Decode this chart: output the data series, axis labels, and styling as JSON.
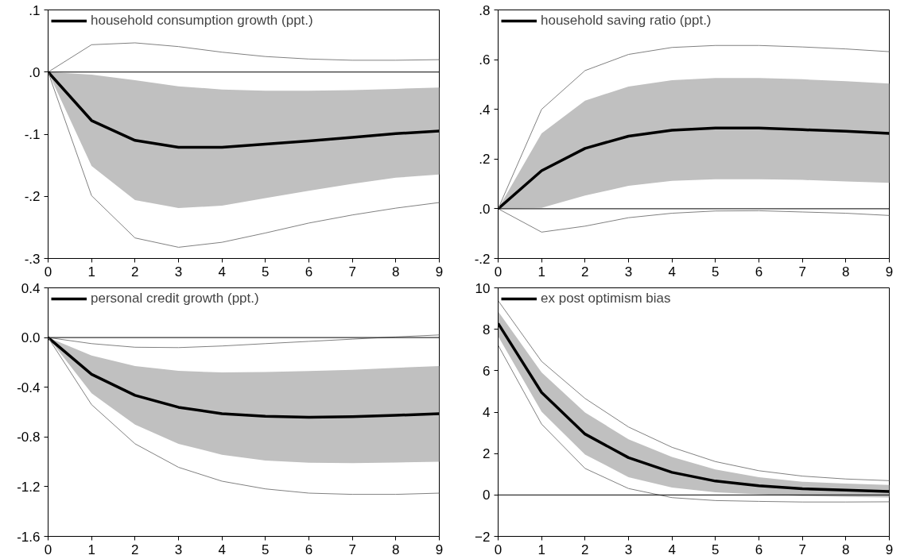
{
  "chart_data": [
    {
      "type": "line",
      "x": [
        0,
        1,
        2,
        3,
        4,
        5,
        6,
        7,
        8,
        9
      ],
      "xlim": [
        0,
        9
      ],
      "xticks": [
        0,
        1,
        2,
        3,
        4,
        5,
        6,
        7,
        8,
        9
      ],
      "ylim": [
        -0.3,
        0.1
      ],
      "yticks": [
        {
          "value": -0.3,
          "label": "-.3"
        },
        {
          "value": -0.2,
          "label": "-.2"
        },
        {
          "value": -0.1,
          "label": "-.1"
        },
        {
          "value": 0,
          "label": ".0"
        },
        {
          "value": 0.1,
          "label": ".1"
        }
      ],
      "grid": false,
      "legend": "top left",
      "ref_lines": [
        {
          "axis": "y",
          "value": 0,
          "color": "#000000"
        }
      ],
      "series": [
        {
          "name": "household consumption growth (ppt.)",
          "color": "#000000",
          "values": [
            0,
            -0.078,
            -0.11,
            -0.121,
            -0.121,
            -0.116,
            -0.111,
            -0.105,
            -0.099,
            -0.095
          ],
          "lower": [
            0,
            -0.151,
            -0.206,
            -0.219,
            -0.215,
            -0.203,
            -0.191,
            -0.18,
            -0.17,
            -0.165
          ],
          "upper": [
            0,
            -0.004,
            -0.013,
            -0.023,
            -0.028,
            -0.03,
            -0.03,
            -0.029,
            -0.027,
            -0.025
          ]
        },
        {
          "color": "#808080",
          "values": [
            0,
            0.044,
            0.047,
            0.041,
            0.032,
            0.025,
            0.021,
            0.019,
            0.019,
            0.02
          ]
        },
        {
          "color": "#808080",
          "values": [
            0,
            -0.199,
            -0.267,
            -0.282,
            -0.274,
            -0.259,
            -0.243,
            -0.23,
            -0.219,
            -0.21
          ]
        }
      ]
    },
    {
      "type": "line",
      "x": [
        0,
        1,
        2,
        3,
        4,
        5,
        6,
        7,
        8,
        9
      ],
      "xlim": [
        0,
        9
      ],
      "xticks": [
        0,
        1,
        2,
        3,
        4,
        5,
        6,
        7,
        8,
        9
      ],
      "ylim": [
        -0.2,
        0.8
      ],
      "yticks": [
        {
          "value": -0.2,
          "label": "-.2"
        },
        {
          "value": 0,
          "label": ".0"
        },
        {
          "value": 0.2,
          "label": ".2"
        },
        {
          "value": 0.4,
          "label": ".4"
        },
        {
          "value": 0.6,
          "label": ".6"
        },
        {
          "value": 0.8,
          "label": ".8"
        }
      ],
      "grid": false,
      "legend": "top left",
      "ref_lines": [
        {
          "axis": "y",
          "value": 0,
          "color": "#000000"
        }
      ],
      "series": [
        {
          "name": "household saving ratio (ppt.)",
          "color": "#000000",
          "values": [
            0,
            0.153,
            0.243,
            0.292,
            0.316,
            0.325,
            0.325,
            0.318,
            0.312,
            0.303
          ],
          "lower": [
            0,
            0.004,
            0.053,
            0.092,
            0.112,
            0.119,
            0.119,
            0.116,
            0.11,
            0.104
          ],
          "upper": [
            0,
            0.303,
            0.435,
            0.492,
            0.517,
            0.526,
            0.526,
            0.521,
            0.513,
            0.504
          ]
        },
        {
          "color": "#808080",
          "values": [
            0,
            0.4,
            0.556,
            0.621,
            0.649,
            0.657,
            0.657,
            0.651,
            0.643,
            0.632
          ]
        },
        {
          "color": "#808080",
          "values": [
            0,
            -0.094,
            -0.07,
            -0.036,
            -0.018,
            -0.009,
            -0.008,
            -0.013,
            -0.018,
            -0.027
          ]
        }
      ]
    },
    {
      "type": "line",
      "x": [
        0,
        1,
        2,
        3,
        4,
        5,
        6,
        7,
        8,
        9
      ],
      "xlim": [
        0,
        9
      ],
      "xticks": [
        0,
        1,
        2,
        3,
        4,
        5,
        6,
        7,
        8,
        9
      ],
      "ylim": [
        -1.6,
        0.4
      ],
      "yticks": [
        {
          "value": -1.6,
          "label": "-1.6"
        },
        {
          "value": -1.2,
          "label": "-1.2"
        },
        {
          "value": -0.8,
          "label": "-0.8"
        },
        {
          "value": -0.4,
          "label": "-0.4"
        },
        {
          "value": 0,
          "label": "0.0"
        },
        {
          "value": 0.4,
          "label": "0.4"
        }
      ],
      "grid": false,
      "legend": "top left",
      "ref_lines": [
        {
          "axis": "y",
          "value": 0,
          "color": "#000000"
        }
      ],
      "series": [
        {
          "name": "personal credit growth (ppt.)",
          "color": "#000000",
          "values": [
            0,
            -0.296,
            -0.465,
            -0.561,
            -0.613,
            -0.634,
            -0.642,
            -0.636,
            -0.626,
            -0.613
          ],
          "lower": [
            0,
            -0.449,
            -0.701,
            -0.855,
            -0.943,
            -0.99,
            -1.008,
            -1.01,
            -1.005,
            -1.0
          ],
          "upper": [
            0,
            -0.145,
            -0.229,
            -0.268,
            -0.281,
            -0.278,
            -0.27,
            -0.26,
            -0.244,
            -0.229
          ]
        },
        {
          "color": "#808080",
          "values": [
            0,
            -0.049,
            -0.078,
            -0.081,
            -0.068,
            -0.049,
            -0.031,
            -0.013,
            0.005,
            0.021
          ]
        },
        {
          "color": "#808080",
          "values": [
            0,
            -0.54,
            -0.855,
            -1.044,
            -1.156,
            -1.218,
            -1.252,
            -1.262,
            -1.262,
            -1.252
          ]
        }
      ]
    },
    {
      "type": "line",
      "x": [
        0,
        1,
        2,
        3,
        4,
        5,
        6,
        7,
        8,
        9
      ],
      "xlim": [
        0,
        9
      ],
      "xticks": [
        0,
        1,
        2,
        3,
        4,
        5,
        6,
        7,
        8,
        9
      ],
      "ylim": [
        -2,
        10
      ],
      "yticks": [
        -2,
        0,
        2,
        4,
        6,
        8,
        10
      ],
      "grid": false,
      "legend": "top left",
      "ref_lines": [
        {
          "axis": "y",
          "value": 0,
          "color": "#000000"
        }
      ],
      "series": [
        {
          "name": "ex post optimism bias",
          "color": "#000000",
          "values": [
            8.28,
            4.95,
            2.94,
            1.8,
            1.09,
            0.67,
            0.44,
            0.3,
            0.23,
            0.17
          ],
          "lower": [
            7.66,
            4.02,
            1.95,
            0.86,
            0.36,
            0.13,
            0.03,
            -0.05,
            -0.09,
            -0.12
          ],
          "upper": [
            8.86,
            5.92,
            3.98,
            2.69,
            1.83,
            1.23,
            0.86,
            0.64,
            0.55,
            0.48
          ]
        },
        {
          "color": "#808080",
          "values": [
            9.38,
            6.45,
            4.66,
            3.28,
            2.3,
            1.61,
            1.17,
            0.91,
            0.77,
            0.69
          ]
        },
        {
          "color": "#808080",
          "values": [
            7.23,
            3.42,
            1.28,
            0.31,
            -0.13,
            -0.27,
            -0.31,
            -0.34,
            -0.34,
            -0.33
          ]
        }
      ]
    }
  ]
}
